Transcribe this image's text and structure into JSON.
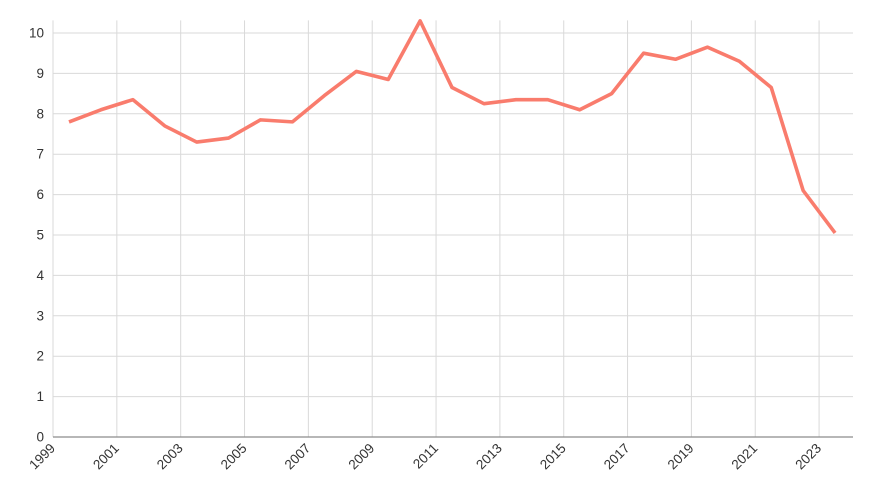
{
  "chart_data": {
    "type": "line",
    "title": "",
    "xlabel": "",
    "ylabel": "",
    "x": [
      1999,
      2000,
      2001,
      2002,
      2003,
      2004,
      2005,
      2006,
      2007,
      2008,
      2009,
      2010,
      2011,
      2012,
      2013,
      2014,
      2015,
      2016,
      2017,
      2018,
      2019,
      2020,
      2021,
      2022,
      2023
    ],
    "series": [
      {
        "name": "value",
        "values": [
          7.8,
          8.1,
          8.35,
          7.7,
          7.3,
          7.4,
          7.85,
          7.8,
          8.45,
          9.05,
          8.85,
          10.3,
          8.65,
          8.25,
          8.35,
          8.35,
          8.1,
          8.5,
          9.5,
          9.35,
          9.65,
          9.3,
          8.65,
          6.1,
          5.05
        ]
      }
    ],
    "ylim": [
      0,
      10.3
    ],
    "y_ticks": [
      0,
      1,
      2,
      3,
      4,
      5,
      6,
      7,
      8,
      9,
      10
    ],
    "x_tick_labels": [
      "1999",
      "2001",
      "2003",
      "2005",
      "2007",
      "2009",
      "2011",
      "2013",
      "2015",
      "2017",
      "2019",
      "2021",
      "2023"
    ],
    "grid": true,
    "legend_position": "none",
    "colors": {
      "line": "#F97C6D",
      "gridline": "#D9D9D9",
      "axis_line": "#8C8C8C",
      "tick_label": "#333333",
      "background": "#FFFFFF"
    }
  }
}
